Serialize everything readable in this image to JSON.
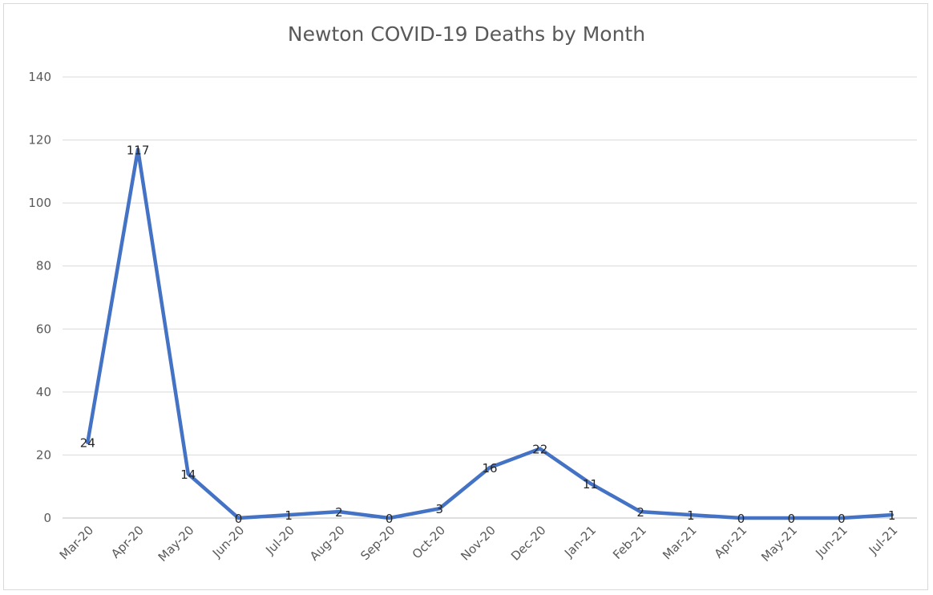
{
  "chart_data": {
    "type": "line",
    "title": "Newton COVID-19 Deaths by Month",
    "xlabel": "",
    "ylabel": "",
    "categories": [
      "Mar-20",
      "Apr-20",
      "May-20",
      "Jun-20",
      "Jul-20",
      "Aug-20",
      "Sep-20",
      "Oct-20",
      "Nov-20",
      "Dec-20",
      "Jan-21",
      "Feb-21",
      "Mar-21",
      "Apr-21",
      "May-21",
      "Jun-21",
      "Jul-21"
    ],
    "series": [
      {
        "values": [
          24,
          117,
          14,
          0,
          1,
          2,
          0,
          3,
          16,
          22,
          11,
          2,
          1,
          0,
          0,
          0,
          1
        ],
        "color": "#4472c4"
      }
    ],
    "ylim": [
      0,
      140
    ],
    "yticks": [
      0,
      20,
      40,
      60,
      80,
      100,
      120,
      140
    ],
    "grid": true,
    "legend": "none",
    "data_labels": true
  }
}
